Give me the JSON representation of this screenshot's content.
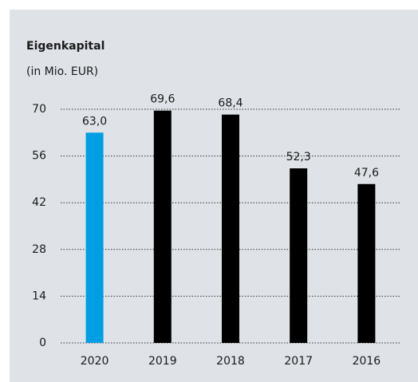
{
  "chart_data": {
    "type": "bar",
    "title": "Eigenkapital",
    "subtitle": "(in Mio. EUR)",
    "categories": [
      "2020",
      "2019",
      "2018",
      "2017",
      "2016"
    ],
    "values": [
      63.0,
      69.6,
      68.4,
      52.3,
      47.6
    ],
    "value_labels": [
      "63,0",
      "69,6",
      "68,4",
      "52,3",
      "47,6"
    ],
    "colors": [
      "#009fe3",
      "#000000",
      "#000000",
      "#000000",
      "#000000"
    ],
    "ylim": [
      0,
      70
    ],
    "yticks": [
      0,
      14,
      28,
      42,
      56,
      70
    ],
    "grid": true
  }
}
